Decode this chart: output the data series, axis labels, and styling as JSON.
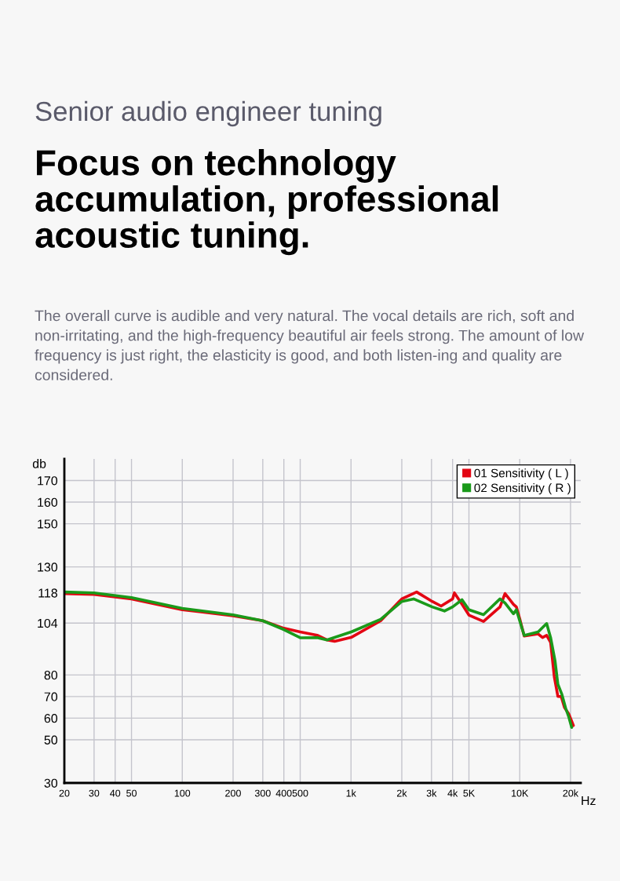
{
  "chart_data": {
    "type": "line",
    "subtitle": "Senior audio engineer tuning",
    "title": "Focus on technology accumulation, professional acoustic tuning.",
    "annotations": [
      "The overall curve is audible and very natural. The vocal details are rich, soft and non-irritating, and the high-frequency beautiful air feels strong. The amount of low frequency is just right, the elasticity is good, and both listen-ing and quality are considered."
    ],
    "xlabel": "Hz",
    "ylabel": "db",
    "xlim": [
      20,
      23000
    ],
    "ylim": [
      30,
      180
    ],
    "xticks": [
      20,
      30,
      40,
      50,
      100,
      200,
      300,
      400,
      500,
      {
        "value": 1000,
        "label": "1k"
      },
      {
        "value": 2000,
        "label": "2k"
      },
      {
        "value": 3000,
        "label": "3k"
      },
      {
        "value": 4000,
        "label": "4k"
      },
      {
        "value": 5000,
        "label": "5K"
      },
      {
        "value": 10000,
        "label": "10K"
      },
      {
        "value": 20000,
        "label": "20k"
      }
    ],
    "yticks": [
      30,
      50,
      60,
      70,
      80,
      104,
      118,
      130,
      150,
      160,
      170
    ],
    "grid": true,
    "legend": "top right",
    "log": "x",
    "series": [
      {
        "name": "01 Sensitivity ( L )",
        "color": "#e30613",
        "x": [
          20,
          30,
          50,
          100,
          200,
          300,
          400,
          500,
          630,
          720,
          800,
          1010,
          1500,
          2000,
          2450,
          3030,
          3420,
          4000,
          4100,
          4550,
          5000,
          6100,
          7640,
          8180,
          9180,
          9550,
          10000,
          10630,
          12860,
          13650,
          14440,
          15240,
          16030,
          16830,
          17620,
          18410,
          19520,
          20790
        ],
        "values": [
          117.6,
          117.3,
          115.2,
          110.2,
          107.4,
          105.1,
          101.6,
          99.9,
          98.4,
          96.2,
          95.6,
          97.5,
          105.1,
          115.2,
          118.4,
          114,
          111.9,
          115.2,
          118,
          112.7,
          107.7,
          104.8,
          111.5,
          117.7,
          112.7,
          111.5,
          106,
          98,
          99,
          97.3,
          98.3,
          95.1,
          79.1,
          70.1,
          70,
          65,
          62,
          56.6
        ]
      },
      {
        "name": "02 Sensitivity ( R )",
        "color": "#1a9a1a",
        "x": [
          20,
          30,
          50,
          100,
          200,
          300,
          400,
          500,
          630,
          720,
          1010,
          1500,
          2000,
          2350,
          3030,
          3580,
          4000,
          4550,
          5000,
          6100,
          7640,
          8180,
          9180,
          9550,
          10630,
          12860,
          14440,
          15240,
          16190,
          16830,
          17780,
          18730,
          19520,
          20320
        ],
        "values": [
          118.4,
          118,
          115.8,
          110.8,
          107.8,
          105.1,
          101,
          97.2,
          97.3,
          96.2,
          100,
          105.8,
          114,
          115.2,
          111.5,
          109.6,
          111.5,
          114.8,
          110.2,
          107.9,
          115.2,
          113.3,
          108.3,
          110.2,
          98.3,
          99.9,
          103.8,
          97.3,
          86.5,
          75.7,
          71,
          64.5,
          60.6,
          55.7
        ]
      }
    ]
  }
}
